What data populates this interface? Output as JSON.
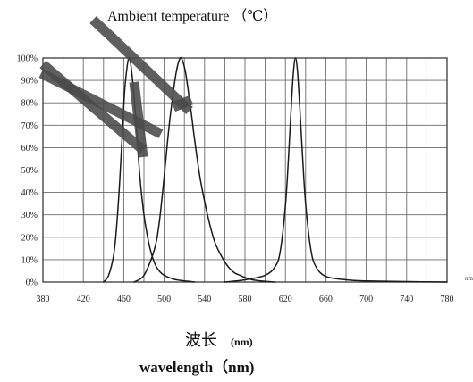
{
  "chart_data": {
    "type": "line",
    "title": "Ambient temperature （℃）",
    "xlabel": "波长",
    "xlabel_unit": "(nm)",
    "xlabel_en": "wavelength（nm)",
    "xlabel_axis_extra": "nm",
    "xlim": [
      380,
      780
    ],
    "ylim": [
      0,
      100
    ],
    "x_ticks": [
      380,
      420,
      460,
      500,
      540,
      580,
      620,
      660,
      700,
      740,
      780
    ],
    "x_tick_labels": [
      "380",
      "420",
      "460",
      "500",
      "540",
      "580",
      "620",
      "660",
      "700",
      "740",
      "780"
    ],
    "y_ticks": [
      0,
      10,
      20,
      30,
      40,
      50,
      60,
      70,
      80,
      90,
      100
    ],
    "y_tick_labels": [
      "0%",
      "10%",
      "20%",
      "30%",
      "40%",
      "50%",
      "60%",
      "70%",
      "80%",
      "90%",
      "100%"
    ],
    "x_minor_step": 20,
    "grid": true,
    "legend": "none",
    "series": [
      {
        "color": "#1a1a1a",
        "x": [
          440,
          445,
          450,
          453,
          456,
          459,
          461,
          463,
          465,
          467,
          470,
          473,
          476,
          480,
          485,
          490,
          495,
          500,
          505,
          510,
          515,
          520,
          525,
          530
        ],
        "y": [
          0,
          3,
          12,
          25,
          45,
          70,
          86,
          95,
          100,
          97,
          84,
          66,
          47,
          30,
          17,
          9,
          5,
          3,
          2,
          1.2,
          0.8,
          0.5,
          0.3,
          0
        ]
      },
      {
        "color": "#1a1a1a",
        "x": [
          470,
          480,
          490,
          495,
          500,
          505,
          510,
          513,
          516,
          518,
          521,
          524,
          527,
          530,
          535,
          540,
          545,
          550,
          555,
          560,
          565,
          570,
          575,
          580,
          585,
          590,
          600,
          610
        ],
        "y": [
          0,
          3,
          14,
          26,
          47,
          70,
          88,
          96,
          100,
          99,
          94,
          85,
          75,
          64,
          48,
          36,
          26,
          18,
          13,
          9,
          6,
          4,
          3,
          2,
          1.3,
          0.8,
          0.3,
          0
        ]
      },
      {
        "color": "#1a1a1a",
        "x": [
          560,
          580,
          600,
          610,
          615,
          620,
          623,
          626,
          628,
          630,
          632,
          634,
          637,
          640,
          645,
          650,
          660,
          680,
          700,
          740,
          780
        ],
        "y": [
          0,
          1,
          3,
          7,
          14,
          34,
          55,
          80,
          94,
          100,
          94,
          80,
          56,
          35,
          15,
          7,
          2.5,
          1,
          0.5,
          0.2,
          0
        ]
      }
    ],
    "watermark_strokes": {
      "color": "#4a4a4a",
      "thickness_px": 11
    }
  }
}
